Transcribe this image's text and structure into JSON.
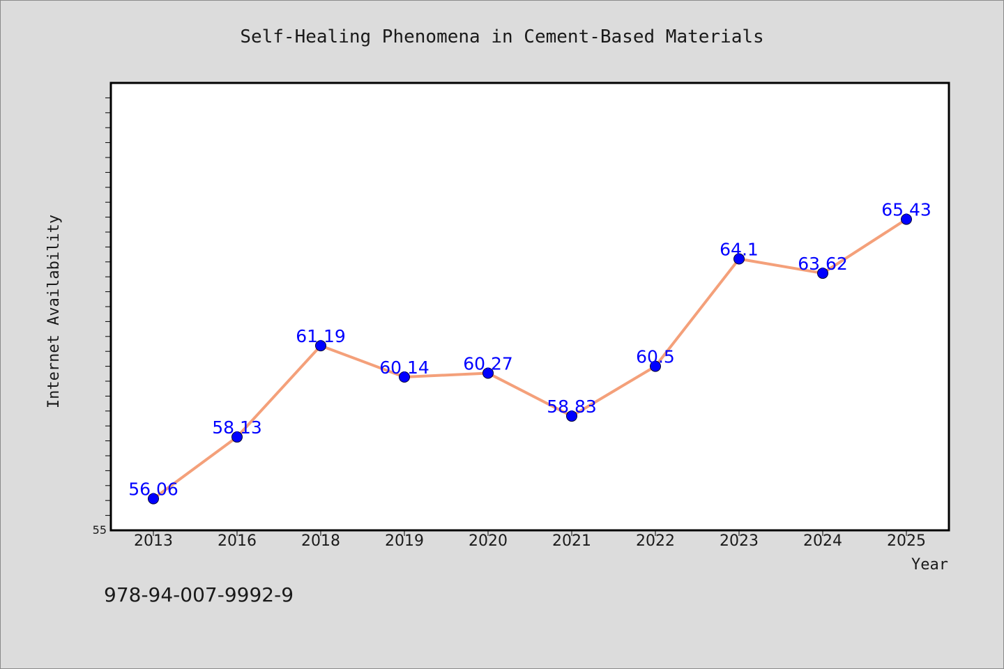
{
  "colors": {
    "background": "#dcdcdc",
    "plot_background": "#ffffff",
    "line": "#f4a07a",
    "marker": "#0000ff",
    "data_label": "#0000ff",
    "axis": "#000000"
  },
  "footer": {
    "isbn": "978-94-007-9992-9"
  },
  "chart_data": {
    "type": "line",
    "title": "Self-Healing Phenomena in Cement-Based Materials",
    "xlabel": "Year",
    "ylabel": "Internet Availability",
    "categories": [
      "2013",
      "2016",
      "2018",
      "2019",
      "2020",
      "2021",
      "2022",
      "2023",
      "2024",
      "2025"
    ],
    "series": [
      {
        "values": [
          56.06,
          58.13,
          61.19,
          60.14,
          60.27,
          58.83,
          60.5,
          64.1,
          63.62,
          65.43
        ],
        "labels": [
          "56.06",
          "58.13",
          "61.19",
          "60.14",
          "60.27",
          "58.83",
          "60.5",
          "64.1",
          "63.62",
          "65.43"
        ]
      }
    ],
    "ylim": [
      55,
      70
    ],
    "y_tick_labels": [
      "55"
    ],
    "grid": false,
    "legend": "none"
  }
}
